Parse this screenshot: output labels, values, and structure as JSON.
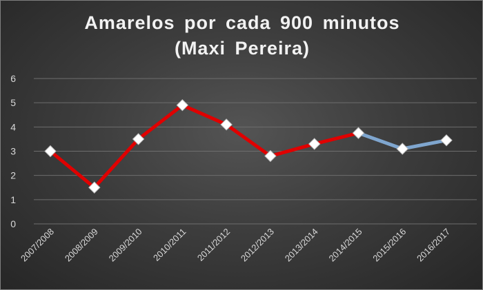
{
  "chart_data": {
    "type": "line",
    "title": "Amarelos  por  cada  900  minutos",
    "subtitle": "(Maxi Pereira)",
    "xlabel": "",
    "ylabel": "",
    "categories": [
      "2007/2008",
      "2008/2009",
      "2009/2010",
      "2010/2011",
      "2011/2012",
      "2012/2013",
      "2013/2014",
      "2014/2015",
      "2015/2016",
      "2016/2017"
    ],
    "values": [
      3.0,
      1.5,
      3.5,
      4.9,
      4.1,
      2.8,
      3.3,
      3.75,
      3.1,
      3.45
    ],
    "ylim": [
      0,
      6
    ],
    "yticks": [
      0,
      1,
      2,
      3,
      4,
      5,
      6
    ],
    "grid": true,
    "legend": "none",
    "colors": {
      "segment_1": "#e00000",
      "segment_2": "#7fa6cf",
      "marker": "#ffffff",
      "gridline": "#6e6e6e"
    },
    "color_break_after_category": "2014/2015"
  }
}
